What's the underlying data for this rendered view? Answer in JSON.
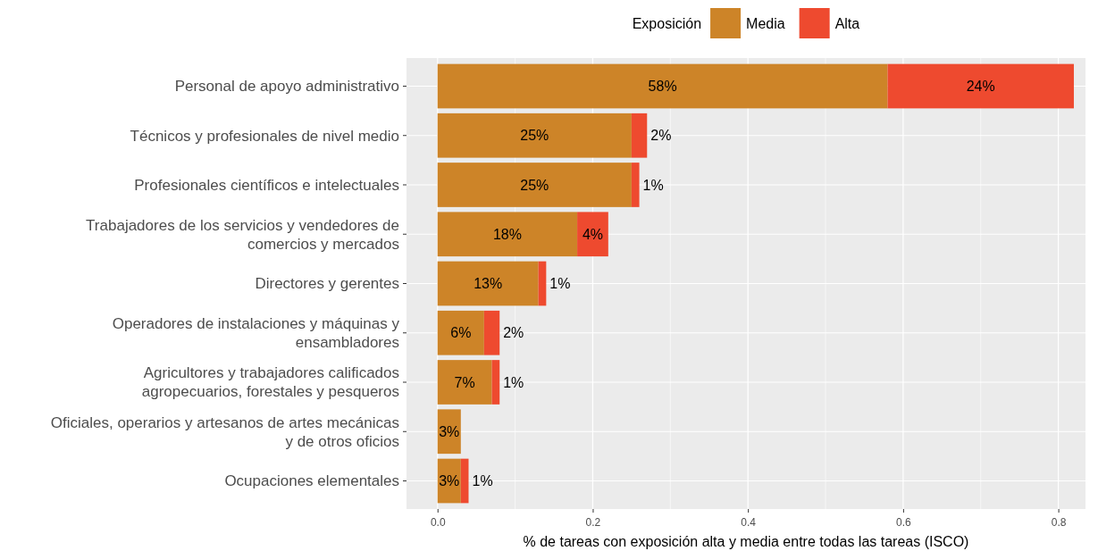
{
  "chart_data": {
    "type": "bar",
    "orientation": "horizontal",
    "stacked": true,
    "xlabel": "% de tareas con exposición alta y media entre todas las tareas (ISCO)",
    "legend_title": "Exposición",
    "legend": "top",
    "grid": true,
    "categories": [
      "Personal de apoyo administrativo",
      "Técnicos y profesionales de nivel medio",
      "Profesionales científicos e intelectuales",
      "Trabajadores de los servicios y vendedores de comercios y mercados",
      "Directores y gerentes",
      "Operadores de instalaciones y máquinas y ensambladores",
      "Agricultores y trabajadores calificados agropecuarios, forestales y pesqueros",
      "Oficiales, operarios y artesanos de artes mecánicas y de otros oficios",
      "Ocupaciones elementales"
    ],
    "series": [
      {
        "name": "Media",
        "color": "#cd8428",
        "values": [
          0.58,
          0.25,
          0.25,
          0.18,
          0.13,
          0.06,
          0.07,
          0.03,
          0.03
        ],
        "value_labels": [
          "58%",
          "25%",
          "25%",
          "18%",
          "13%",
          "6%",
          "7%",
          "3%",
          "3%"
        ]
      },
      {
        "name": "Alta",
        "color": "#ee4a2f",
        "values": [
          0.24,
          0.02,
          0.01,
          0.04,
          0.01,
          0.02,
          0.01,
          null,
          0.01
        ],
        "value_labels": [
          "24%",
          "2%",
          "1%",
          "4%",
          "1%",
          "2%",
          "1%",
          null,
          "1%"
        ]
      }
    ],
    "xlim": [
      -0.04,
      0.835
    ],
    "xticks": [
      {
        "value": 0,
        "label": "0.0"
      },
      0.2,
      0.4,
      0.6,
      0.8
    ]
  }
}
